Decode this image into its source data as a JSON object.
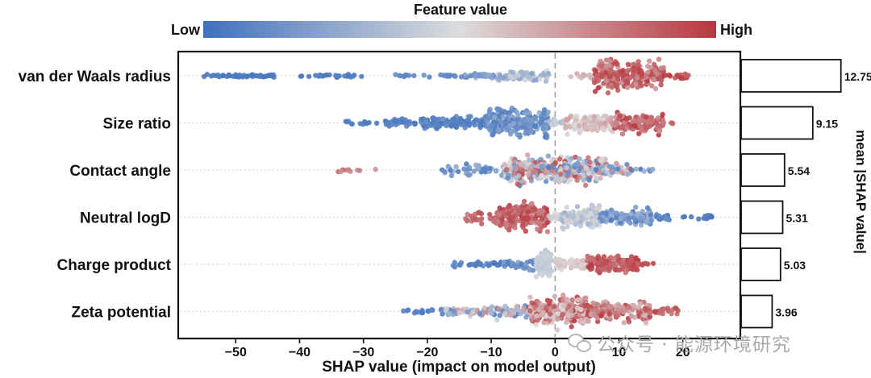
{
  "chart_data": {
    "type": "scatter",
    "subtype": "beeswarm",
    "colorbar": {
      "title": "Feature value",
      "low_label": "Low",
      "high_label": "High",
      "low_color": "#3f71bd",
      "mid_color": "#dcdcdc",
      "high_color": "#b8383f"
    },
    "xlabel": "SHAP value (impact on model output)",
    "xlim": [
      -59,
      29
    ],
    "xticks": [
      -50,
      -40,
      -30,
      -20,
      -10,
      0,
      10,
      20
    ],
    "xtick_labels": [
      "−50",
      "−40",
      "−30",
      "−20",
      "−10",
      "0",
      "10",
      "20"
    ],
    "zero_line": true,
    "features": [
      {
        "name": "van der Waals radius",
        "mean_abs_shap": 12.75,
        "mean_label": "12.75",
        "clusters": [
          {
            "x": [
              -55,
              -44
            ],
            "c": [
              0.02,
              0.05
            ],
            "n": 40,
            "w": 0.1
          },
          {
            "x": [
              -40,
              -30
            ],
            "c": [
              0.03,
              0.08
            ],
            "n": 25,
            "w": 0.1
          },
          {
            "x": [
              -25,
              -15
            ],
            "c": [
              0.05,
              0.15
            ],
            "n": 22,
            "w": 0.12
          },
          {
            "x": [
              -15,
              -9
            ],
            "c": [
              0.1,
              0.3
            ],
            "n": 30,
            "w": 0.2
          },
          {
            "x": [
              -9,
              -1
            ],
            "c": [
              0.2,
              0.55
            ],
            "n": 70,
            "w": 0.45
          },
          {
            "x": [
              2,
              6
            ],
            "c": [
              0.55,
              0.7
            ],
            "n": 12,
            "w": 0.2
          },
          {
            "x": [
              6,
              17
            ],
            "c": [
              0.7,
              1.0
            ],
            "n": 240,
            "w": 0.95
          },
          {
            "x": [
              17,
              21
            ],
            "c": [
              0.85,
              1.0
            ],
            "n": 18,
            "w": 0.3
          }
        ]
      },
      {
        "name": "Size ratio",
        "mean_abs_shap": 9.15,
        "mean_label": "9.15",
        "clusters": [
          {
            "x": [
              -33,
              -27
            ],
            "c": [
              0.02,
              0.08
            ],
            "n": 12,
            "w": 0.15
          },
          {
            "x": [
              -27,
              -21
            ],
            "c": [
              0.03,
              0.1
            ],
            "n": 28,
            "w": 0.25
          },
          {
            "x": [
              -21,
              -11
            ],
            "c": [
              0.03,
              0.15
            ],
            "n": 110,
            "w": 0.45
          },
          {
            "x": [
              -11,
              -1
            ],
            "c": [
              0.05,
              0.25
            ],
            "n": 220,
            "w": 0.95
          },
          {
            "x": [
              -1,
              1.5
            ],
            "c": [
              0.3,
              0.5
            ],
            "n": 20,
            "w": 0.25
          },
          {
            "x": [
              1.5,
              9
            ],
            "c": [
              0.5,
              0.7
            ],
            "n": 120,
            "w": 0.7
          },
          {
            "x": [
              9,
              17
            ],
            "c": [
              0.7,
              1.0
            ],
            "n": 110,
            "w": 0.75
          },
          {
            "x": [
              17,
              18.5
            ],
            "c": [
              0.75,
              0.9
            ],
            "n": 4,
            "w": 0.1
          }
        ]
      },
      {
        "name": "Contact angle",
        "mean_abs_shap": 5.54,
        "mean_label": "5.54",
        "clusters": [
          {
            "x": [
              -34,
              -28
            ],
            "c": [
              0.7,
              0.85
            ],
            "n": 10,
            "w": 0.15
          },
          {
            "x": [
              -18,
              -8
            ],
            "c": [
              0.05,
              0.3
            ],
            "n": 40,
            "w": 0.35
          },
          {
            "x": [
              -8,
              0
            ],
            "c": [
              0.05,
              0.95
            ],
            "n": 170,
            "w": 0.9
          },
          {
            "x": [
              0,
              8
            ],
            "c": [
              0.05,
              0.95
            ],
            "n": 180,
            "w": 0.95
          },
          {
            "x": [
              8,
              12
            ],
            "c": [
              0.1,
              0.9
            ],
            "n": 40,
            "w": 0.45
          },
          {
            "x": [
              12,
              15.5
            ],
            "c": [
              0.02,
              0.3
            ],
            "n": 8,
            "w": 0.15
          }
        ]
      },
      {
        "name": "Neutral logD",
        "mean_abs_shap": 5.31,
        "mean_label": "5.31",
        "clusters": [
          {
            "x": [
              -14,
              -9
            ],
            "c": [
              0.8,
              0.95
            ],
            "n": 30,
            "w": 0.4
          },
          {
            "x": [
              -9,
              -1
            ],
            "c": [
              0.75,
              1.0
            ],
            "n": 190,
            "w": 0.95
          },
          {
            "x": [
              -1,
              1
            ],
            "c": [
              0.4,
              0.6
            ],
            "n": 15,
            "w": 0.3
          },
          {
            "x": [
              1,
              7
            ],
            "c": [
              0.3,
              0.55
            ],
            "n": 130,
            "w": 0.8
          },
          {
            "x": [
              7,
              15
            ],
            "c": [
              0.05,
              0.3
            ],
            "n": 100,
            "w": 0.55
          },
          {
            "x": [
              15,
              18
            ],
            "c": [
              0.03,
              0.15
            ],
            "n": 20,
            "w": 0.25
          },
          {
            "x": [
              20,
              25.5
            ],
            "c": [
              0.02,
              0.06
            ],
            "n": 12,
            "w": 0.15
          }
        ]
      },
      {
        "name": "Charge product",
        "mean_abs_shap": 5.03,
        "mean_label": "5.03",
        "clusters": [
          {
            "x": [
              -16,
              -8
            ],
            "c": [
              0.02,
              0.12
            ],
            "n": 30,
            "w": 0.2
          },
          {
            "x": [
              -8,
              -3
            ],
            "c": [
              0.05,
              0.25
            ],
            "n": 40,
            "w": 0.35
          },
          {
            "x": [
              -3,
              -0.5
            ],
            "c": [
              0.38,
              0.46
            ],
            "n": 90,
            "w": 0.95
          },
          {
            "x": [
              0,
              5
            ],
            "c": [
              0.5,
              0.6
            ],
            "n": 60,
            "w": 0.4
          },
          {
            "x": [
              5,
              13
            ],
            "c": [
              0.8,
              1.0
            ],
            "n": 120,
            "w": 0.6
          },
          {
            "x": [
              13,
              15.5
            ],
            "c": [
              0.85,
              0.95
            ],
            "n": 8,
            "w": 0.15
          }
        ]
      },
      {
        "name": "Zeta potential",
        "mean_abs_shap": 3.96,
        "mean_label": "3.96",
        "clusters": [
          {
            "x": [
              -24,
              -18
            ],
            "c": [
              0.02,
              0.1
            ],
            "n": 15,
            "w": 0.2
          },
          {
            "x": [
              -18,
              -10
            ],
            "c": [
              0.05,
              0.9
            ],
            "n": 60,
            "w": 0.35
          },
          {
            "x": [
              -10,
              -4
            ],
            "c": [
              0.05,
              0.8
            ],
            "n": 60,
            "w": 0.45
          },
          {
            "x": [
              -4,
              5
            ],
            "c": [
              0.5,
              1.0
            ],
            "n": 260,
            "w": 1.0
          },
          {
            "x": [
              5,
              15
            ],
            "c": [
              0.6,
              1.0
            ],
            "n": 150,
            "w": 0.7
          },
          {
            "x": [
              15,
              20
            ],
            "c": [
              0.8,
              1.0
            ],
            "n": 20,
            "w": 0.25
          }
        ]
      }
    ],
    "bar_axis_label": "mean |SHAP value|",
    "bar_max": 13.5
  },
  "watermark": {
    "text": "公众号 · 能源环境研究"
  }
}
